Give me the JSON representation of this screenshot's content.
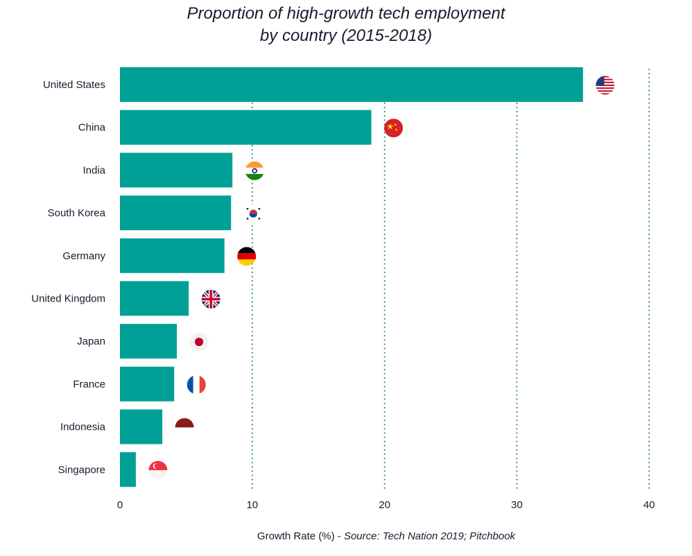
{
  "title": {
    "line1": "Proportion of high-growth tech employment",
    "line2": "by country (2015-2018)"
  },
  "footer": {
    "xlabel": "Growth Rate (%) - ",
    "source": "Source: Tech Nation 2019; Pitchbook"
  },
  "colors": {
    "bar": "#00a096",
    "grid": "#1a7a76",
    "text": "#1a1a2e"
  },
  "chart_data": {
    "type": "bar",
    "orientation": "horizontal",
    "categories": [
      "United States",
      "China",
      "India",
      "South Korea",
      "Germany",
      "United Kingdom",
      "Japan",
      "France",
      "Indonesia",
      "Singapore"
    ],
    "values": [
      35.0,
      19.0,
      8.5,
      8.4,
      7.9,
      5.2,
      4.3,
      4.1,
      3.2,
      1.2
    ],
    "flags": [
      "us-flag-icon",
      "cn-flag-icon",
      "in-flag-icon",
      "kr-flag-icon",
      "de-flag-icon",
      "gb-flag-icon",
      "jp-flag-icon",
      "fr-flag-icon",
      "id-flag-icon",
      "sg-flag-icon"
    ],
    "xticks": [
      "0",
      "10",
      "20",
      "30",
      "40"
    ],
    "xlim": [
      0,
      40
    ],
    "grid": "vertical dotted",
    "title": "Proportion of high-growth tech employment by country (2015-2018)",
    "xlabel": "Growth Rate (%)"
  }
}
